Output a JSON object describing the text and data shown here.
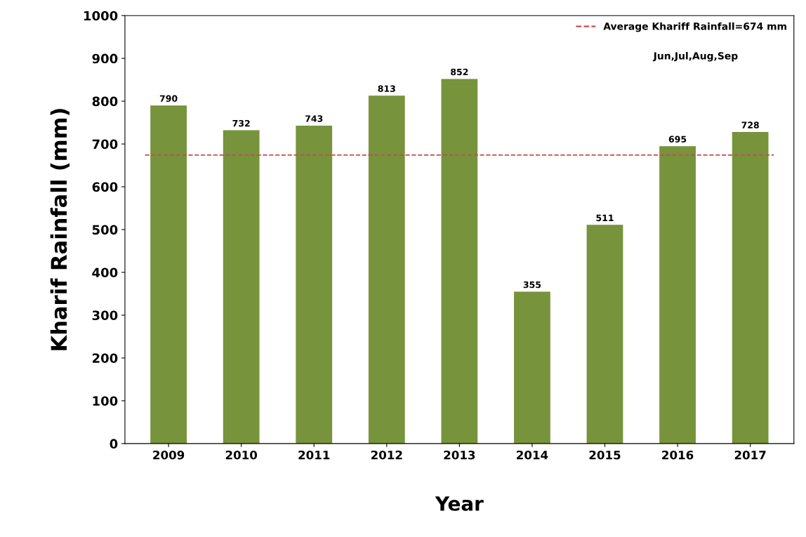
{
  "chart_data": {
    "type": "bar",
    "xlabel": "Year",
    "ylabel": "Kharif Rainfall (mm)",
    "categories": [
      "2009",
      "2010",
      "2011",
      "2012",
      "2013",
      "2014",
      "2015",
      "2016",
      "2017"
    ],
    "values": [
      790,
      732,
      743,
      813,
      852,
      355,
      511,
      695,
      728
    ],
    "color": "#77933c",
    "data_labels": true,
    "ylim": [
      0,
      1000
    ],
    "yticks": [
      0,
      100,
      200,
      300,
      400,
      500,
      600,
      700,
      800,
      900,
      1000
    ],
    "ref_lines": [
      {
        "axis": "y",
        "value": 674,
        "label": "Average Khariff Rainfall=674 mm",
        "color": "#c0504d",
        "line_style": "dashed"
      }
    ],
    "annotations": [
      "Jun,Jul,Aug,Sep"
    ],
    "legend": "top right",
    "grid": false
  }
}
